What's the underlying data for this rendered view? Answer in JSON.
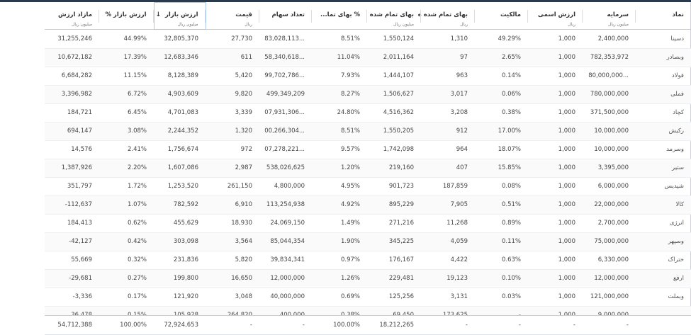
{
  "columns": [
    {
      "label": "نماد",
      "unit": ""
    },
    {
      "label": "سرمایه",
      "unit": "میلیون ریال"
    },
    {
      "label": "ارزش اسمی",
      "unit": "ریال"
    },
    {
      "label": "مالکیت",
      "unit": ""
    },
    {
      "label": "بهای تمام شده ه",
      "unit": "ریال"
    },
    {
      "label": "بهای تمام شده",
      "unit": "میلیون ریال"
    },
    {
      "label": "% بهای تما...",
      "unit": ""
    },
    {
      "label": "تعداد سهام",
      "unit": ""
    },
    {
      "label": "قیمت",
      "unit": "ریال"
    },
    {
      "label": "ارزش بازار",
      "unit": "میلیون ریال",
      "sort": "descending",
      "sort_icon": "arrow-down-icon"
    },
    {
      "label": "ارزش بازار %",
      "unit": ""
    },
    {
      "label": "مازاد ارزش",
      "unit": "میلیون ریال"
    }
  ],
  "rows": [
    [
      "دسینا",
      "2,400,000",
      "1,000",
      "49.29%",
      "1,310",
      "1,550,124",
      "8.51%",
      "...83,028,113",
      "27,730",
      "32,805,370",
      "44.99%",
      "31,255,246"
    ],
    [
      "وبصادر",
      "782,353,972",
      "1,000",
      "2.65%",
      "97",
      "2,011,164",
      "11.04%",
      "...58,340,618",
      "611",
      "12,683,346",
      "17.39%",
      "10,672,182"
    ],
    [
      "فولاد",
      "...80,000,000",
      "1,000",
      "0.14%",
      "963",
      "1,444,107",
      "7.93%",
      "...99,702,786",
      "5,420",
      "8,128,389",
      "11.15%",
      "6,684,282"
    ],
    [
      "فملی",
      "780,000,000",
      "1,000",
      "0.06%",
      "3,017",
      "1,506,627",
      "8.27%",
      "499,349,209",
      "9,820",
      "4,903,609",
      "6.72%",
      "3,396,982"
    ],
    [
      "کچاد",
      "371,500,000",
      "1,000",
      "0.38%",
      "3,208",
      "4,516,362",
      "24.80%",
      "...07,931,306",
      "3,339",
      "4,701,083",
      "6.45%",
      "184,721"
    ],
    [
      "رکیش",
      "10,000,000",
      "1,000",
      "17.00%",
      "912",
      "1,550,205",
      "8.51%",
      "...00,266,304",
      "1,320",
      "2,244,352",
      "3.08%",
      "694,147"
    ],
    [
      "وسرمد",
      "10,000,000",
      "1,000",
      "18.07%",
      "964",
      "1,742,098",
      "9.57%",
      "...07,278,221",
      "972",
      "1,756,674",
      "2.41%",
      "14,576"
    ],
    [
      "ستیر",
      "3,395,000",
      "1,000",
      "15.85%",
      "407",
      "219,160",
      "1.20%",
      "538,026,625",
      "2,987",
      "1,607,086",
      "2.20%",
      "1,387,926"
    ],
    [
      "شپدیس",
      "6,000,000",
      "1,000",
      "0.08%",
      "187,859",
      "901,723",
      "4.95%",
      "4,800,000",
      "261,150",
      "1,253,520",
      "1.72%",
      "351,797"
    ],
    [
      "کالا",
      "22,000,000",
      "1,000",
      "0.51%",
      "7,905",
      "895,229",
      "4.92%",
      "113,254,938",
      "6,910",
      "782,592",
      "1.07%",
      "112,637-"
    ],
    [
      "انرژی",
      "2,700,000",
      "1,000",
      "0.89%",
      "11,268",
      "271,216",
      "1.49%",
      "24,069,150",
      "18,930",
      "455,629",
      "0.62%",
      "184,413"
    ],
    [
      "وسپهر",
      "75,000,000",
      "1,000",
      "0.11%",
      "4,059",
      "345,225",
      "1.90%",
      "85,044,354",
      "3,564",
      "303,098",
      "0.42%",
      "42,127-"
    ],
    [
      "ختراک",
      "6,330,000",
      "1,000",
      "0.63%",
      "4,422",
      "176,167",
      "0.97%",
      "39,834,341",
      "5,820",
      "231,836",
      "0.32%",
      "55,669"
    ],
    [
      "ارفع",
      "12,000,000",
      "1,000",
      "0.10%",
      "19,123",
      "229,481",
      "1.26%",
      "12,000,000",
      "16,650",
      "199,800",
      "0.27%",
      "29,681-"
    ],
    [
      "وبملت",
      "121,000,000",
      "1,000",
      "0.03%",
      "3,131",
      "125,256",
      "0.69%",
      "40,000,000",
      "3,048",
      "121,920",
      "0.17%",
      "3,336-"
    ],
    [
      "",
      "9,000,000",
      "1,000",
      "-",
      "173,625",
      "69,450",
      "0.38%",
      "400,000",
      "264,820",
      "105,928",
      "0.15%",
      "36,478"
    ]
  ],
  "totals": [
    "",
    "-",
    "-",
    "-",
    "-",
    "18,212,265",
    "100.00%",
    "-",
    "-",
    "72,924,653",
    "100.00%",
    "54,712,388"
  ]
}
